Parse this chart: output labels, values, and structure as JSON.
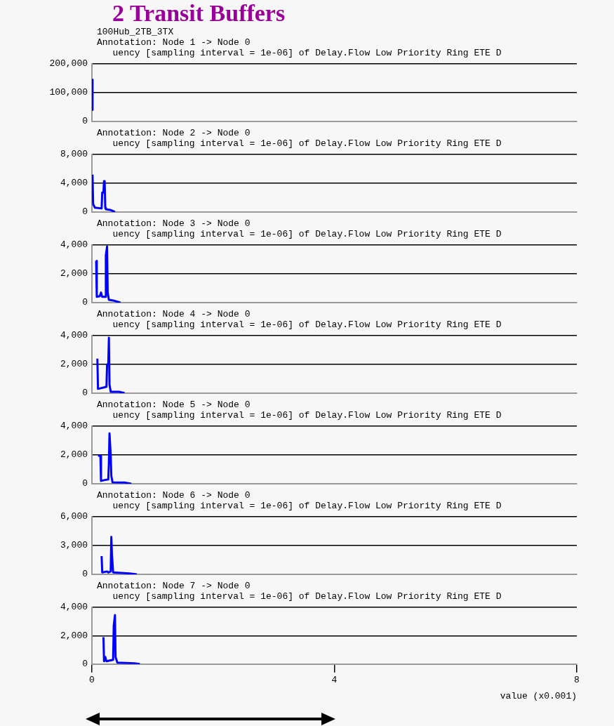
{
  "chart_data": [
    {
      "type": "other",
      "title": "2 Transit Buffers",
      "subtitle": "100Hub_2TB_3TX"
    },
    {
      "type": "line",
      "title": "Annotation: Node 1 -> Node 0",
      "subtitle": "uency [sampling interval = 1e-06] of Delay.Flow Low Priority Ring ETE D",
      "xlim": [
        0,
        8
      ],
      "xticks": [
        0,
        4,
        8
      ],
      "ylim": [
        0,
        200000
      ],
      "yticks": [
        {
          "value": 0,
          "label": "0"
        },
        {
          "value": 100000,
          "label": "100,000"
        },
        {
          "value": 200000,
          "label": "200,000"
        }
      ],
      "grid": "y",
      "tick_labels": "y",
      "marker": "none",
      "series": [
        {
          "color": "#0000ff",
          "x": [
            0,
            0.01
          ],
          "values": [
            145000,
            40000
          ]
        }
      ]
    },
    {
      "type": "line",
      "title": "Annotation: Node 2 -> Node 0",
      "subtitle": "uency [sampling interval = 1e-06] of Delay.Flow Low Priority Ring ETE D",
      "xlim": [
        0,
        8
      ],
      "xticks": [
        0,
        4,
        8
      ],
      "ylim": [
        0,
        8000
      ],
      "yticks": [
        {
          "value": 0,
          "label": "0"
        },
        {
          "value": 4000,
          "label": "4,000"
        },
        {
          "value": 8000,
          "label": "8,000"
        }
      ],
      "grid": "y",
      "tick_labels": "y",
      "marker": "none",
      "series": [
        {
          "color": "#0000ff",
          "x": [
            0.01,
            0.02,
            0.05,
            0.16,
            0.17,
            0.19,
            0.2,
            0.21,
            0.22,
            0.23,
            0.3,
            0.36,
            0.38
          ],
          "values": [
            5200,
            1100,
            600,
            500,
            2700,
            2700,
            4300,
            4300,
            600,
            400,
            300,
            100,
            0
          ]
        }
      ]
    },
    {
      "type": "line",
      "title": "Annotation: Node 3 -> Node 0",
      "subtitle": "uency [sampling interval = 1e-06] of Delay.Flow Low Priority Ring ETE D",
      "xlim": [
        0,
        8
      ],
      "xticks": [
        0,
        4,
        8
      ],
      "ylim": [
        0,
        4000
      ],
      "yticks": [
        {
          "value": 0,
          "label": "0"
        },
        {
          "value": 2000,
          "label": "2,000"
        },
        {
          "value": 4000,
          "label": "4,000"
        }
      ],
      "grid": "y",
      "tick_labels": "y",
      "marker": "none",
      "series": [
        {
          "color": "#0000ff",
          "x": [
            0.07,
            0.08,
            0.13,
            0.15,
            0.17,
            0.22,
            0.23,
            0.25,
            0.26,
            0.28,
            0.35,
            0.47
          ],
          "values": [
            2900,
            400,
            450,
            700,
            400,
            400,
            3300,
            3900,
            700,
            200,
            150,
            0
          ]
        }
      ]
    },
    {
      "type": "line",
      "title": "Annotation: Node 4 -> Node 0",
      "subtitle": "uency [sampling interval = 1e-06] of Delay.Flow Low Priority Ring ETE D",
      "xlim": [
        0,
        8
      ],
      "xticks": [
        0,
        4,
        8
      ],
      "ylim": [
        0,
        4000
      ],
      "yticks": [
        {
          "value": 0,
          "label": "0"
        },
        {
          "value": 2000,
          "label": "2,000"
        },
        {
          "value": 4000,
          "label": "4,000"
        }
      ],
      "grid": "y",
      "tick_labels": "y",
      "marker": "none",
      "series": [
        {
          "color": "#0000ff",
          "x": [
            0.09,
            0.1,
            0.2,
            0.24,
            0.25,
            0.27,
            0.28,
            0.29,
            0.31,
            0.45,
            0.54
          ],
          "values": [
            2400,
            300,
            400,
            450,
            2000,
            2000,
            3850,
            600,
            100,
            100,
            0
          ]
        }
      ]
    },
    {
      "type": "line",
      "title": "Annotation: Node 5 -> Node 0",
      "subtitle": "uency [sampling interval = 1e-06] of Delay.Flow Low Priority Ring ETE D",
      "xlim": [
        0,
        8
      ],
      "xticks": [
        0,
        4,
        8
      ],
      "ylim": [
        0,
        4000
      ],
      "yticks": [
        {
          "value": 0,
          "label": "0"
        },
        {
          "value": 2000,
          "label": "2,000"
        },
        {
          "value": 4000,
          "label": "4,000"
        }
      ],
      "grid": "y",
      "tick_labels": "y",
      "marker": "none",
      "series": [
        {
          "color": "#0000ff",
          "x": [
            0.1,
            0.14,
            0.15,
            0.2,
            0.27,
            0.28,
            0.29,
            0.31,
            0.32,
            0.34,
            0.55,
            0.65
          ],
          "values": [
            1950,
            1950,
            200,
            250,
            300,
            1500,
            3500,
            2000,
            550,
            100,
            80,
            0
          ]
        }
      ]
    },
    {
      "type": "line",
      "title": "Annotation: Node 6 -> Node 0",
      "subtitle": "uency [sampling interval = 1e-06] of Delay.Flow Low Priority Ring ETE D",
      "xlim": [
        0,
        8
      ],
      "xticks": [
        0,
        4,
        8
      ],
      "ylim": [
        0,
        6000
      ],
      "yticks": [
        {
          "value": 0,
          "label": "0"
        },
        {
          "value": 3000,
          "label": "3,000"
        },
        {
          "value": 6000,
          "label": "6,000"
        }
      ],
      "grid": "y",
      "tick_labels": "y",
      "marker": "none",
      "series": [
        {
          "color": "#0000ff",
          "x": [
            0.16,
            0.17,
            0.25,
            0.27,
            0.31,
            0.32,
            0.33,
            0.35,
            0.62,
            0.74
          ],
          "values": [
            1900,
            200,
            300,
            200,
            300,
            3900,
            2100,
            200,
            100,
            0
          ]
        }
      ]
    },
    {
      "type": "line",
      "title": "Annotation: Node 7 -> Node 0",
      "subtitle": "uency [sampling interval = 1e-06] of Delay.Flow Low Priority Ring ETE D",
      "xlabel": "value (x0.001)",
      "xlim": [
        0,
        8
      ],
      "xticks": [
        0,
        4,
        8
      ],
      "ylim": [
        0,
        4000
      ],
      "yticks": [
        {
          "value": 0,
          "label": "0"
        },
        {
          "value": 2000,
          "label": "2,000"
        },
        {
          "value": 4000,
          "label": "4,000"
        }
      ],
      "grid": "y",
      "marker": "none",
      "series": [
        {
          "color": "#0000ff",
          "x": [
            0.19,
            0.2,
            0.22,
            0.24,
            0.35,
            0.36,
            0.38,
            0.39,
            0.42,
            0.7,
            0.79
          ],
          "values": [
            1900,
            200,
            500,
            200,
            300,
            2700,
            3450,
            500,
            100,
            50,
            0
          ]
        }
      ]
    }
  ]
}
